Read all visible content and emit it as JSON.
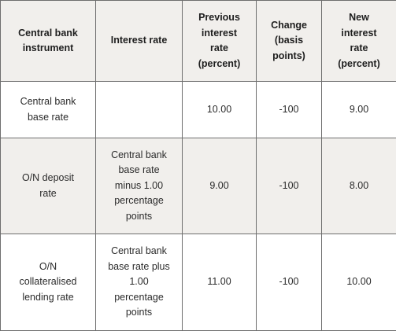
{
  "headers": [
    "Central bank instrument",
    "Interest rate",
    "Previous interest rate (percent)",
    "Change (basis points)",
    "New interest rate (percent)"
  ],
  "rows": [
    {
      "instrument": "Central bank base rate",
      "interest_rate": "",
      "previous": "10.00",
      "change": "-100",
      "new": "9.00"
    },
    {
      "instrument": "O/N deposit rate",
      "interest_rate": "Central bank base rate minus 1.00 percentage points",
      "previous": "9.00",
      "change": "-100",
      "new": "8.00"
    },
    {
      "instrument": "O/N collateralised lending rate",
      "interest_rate": "Central bank base rate plus 1.00 percentage points",
      "previous": "11.00",
      "change": "-100",
      "new": "10.00"
    }
  ]
}
